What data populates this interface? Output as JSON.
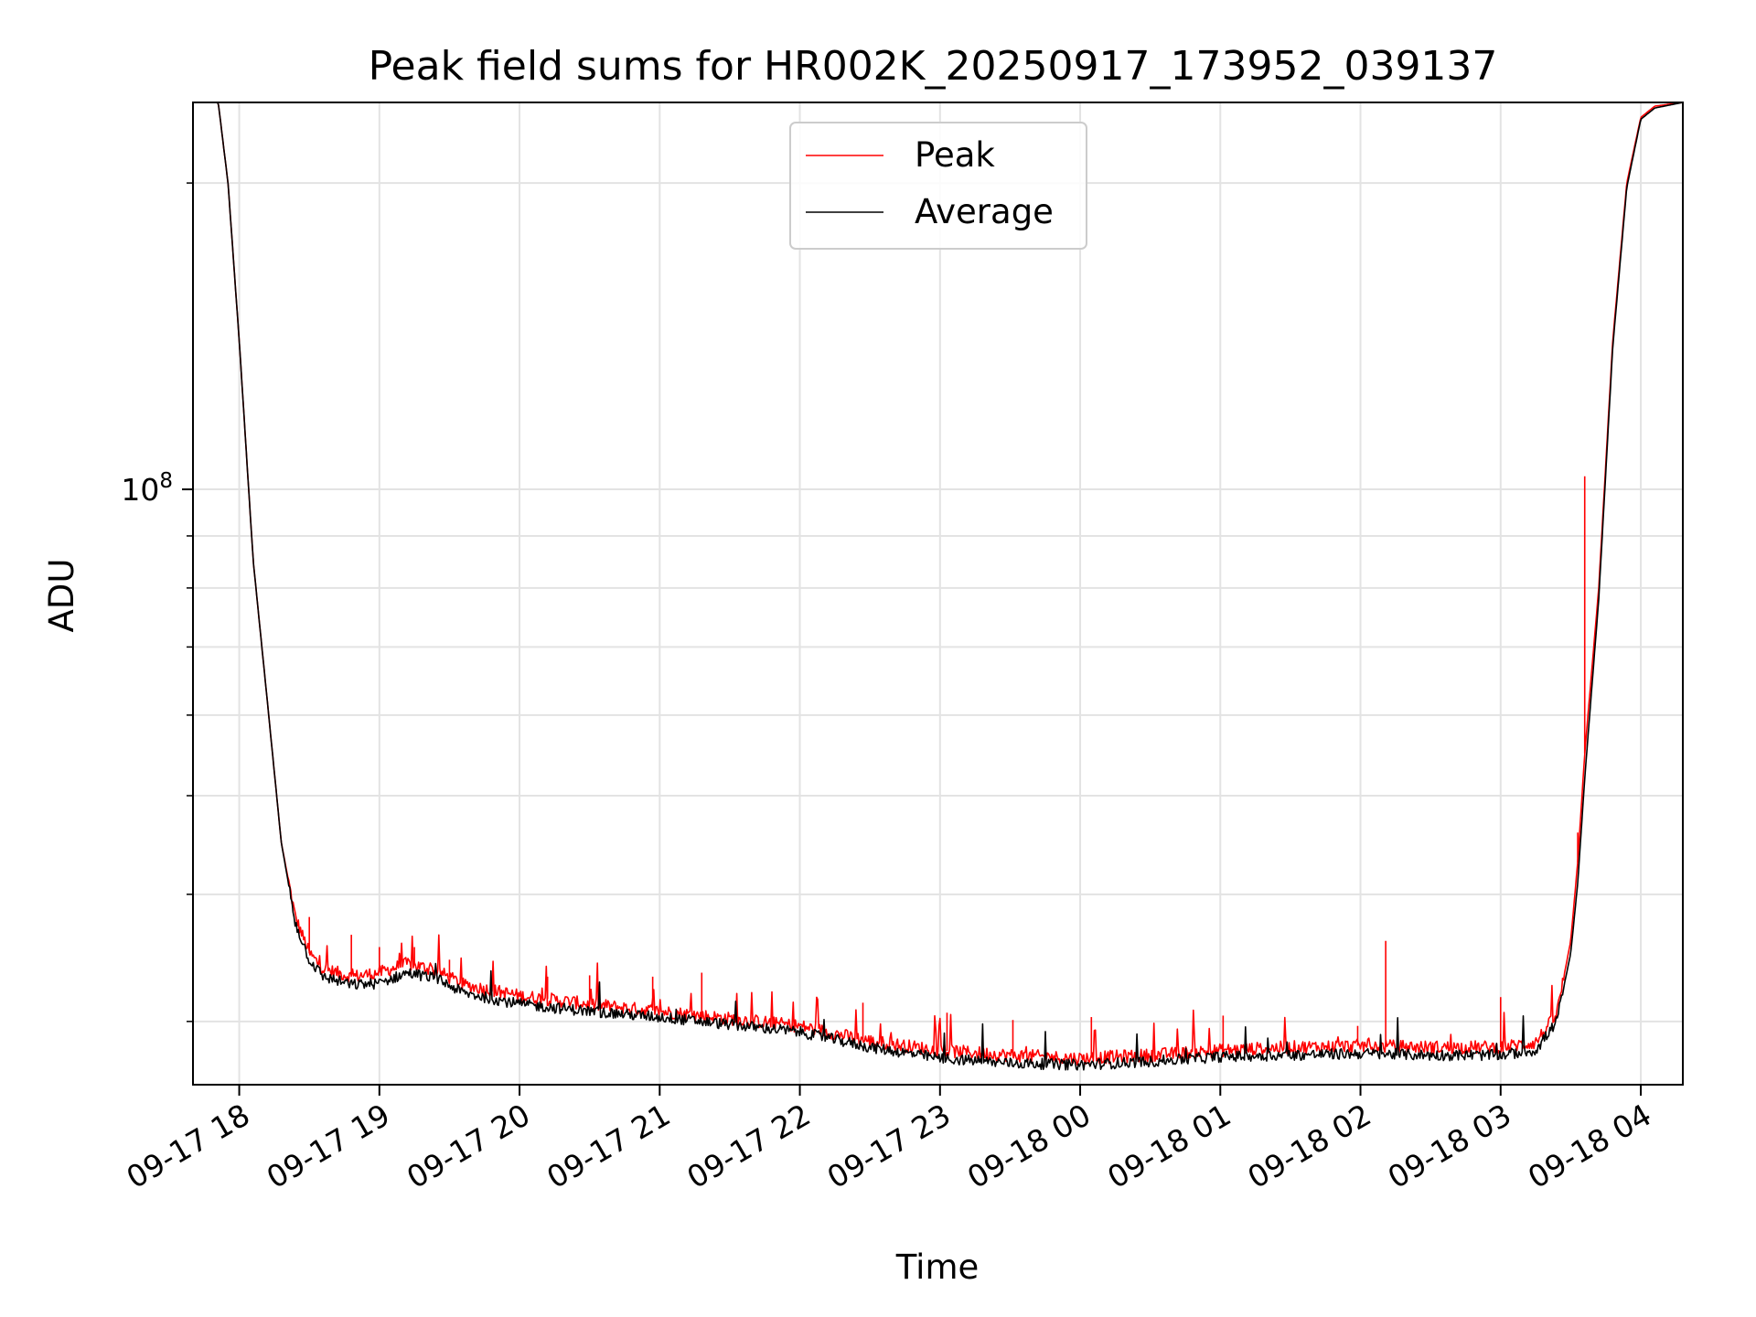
{
  "chart_data": {
    "type": "line",
    "title": "Peak field sums for HR002K_20250917_173952_039137",
    "xlabel": "Time",
    "ylabel": "ADU",
    "yscale": "log",
    "xlim_hours": [
      17.67,
      28.3
    ],
    "ylim": [
      26000000,
      240000000
    ],
    "grid": true,
    "legend_position": "upper-center",
    "x_ticks": [
      {
        "hour": 18,
        "label": "09-17 18"
      },
      {
        "hour": 19,
        "label": "09-17 19"
      },
      {
        "hour": 20,
        "label": "09-17 20"
      },
      {
        "hour": 21,
        "label": "09-17 21"
      },
      {
        "hour": 22,
        "label": "09-17 22"
      },
      {
        "hour": 23,
        "label": "09-17 23"
      },
      {
        "hour": 24,
        "label": "09-18 00"
      },
      {
        "hour": 25,
        "label": "09-18 01"
      },
      {
        "hour": 26,
        "label": "09-18 02"
      },
      {
        "hour": 27,
        "label": "09-18 03"
      },
      {
        "hour": 28,
        "label": "09-18 04"
      }
    ],
    "y_major_ticks": [
      {
        "value": 100000000,
        "base": "10",
        "exp": "8"
      }
    ],
    "y_minor_ticks": [
      30000000,
      40000000,
      50000000,
      60000000,
      70000000,
      80000000,
      90000000,
      200000000
    ],
    "series": [
      {
        "name": "Peak",
        "color": "#ff0000",
        "points": [
          [
            17.67,
            240000000
          ],
          [
            17.85,
            240000000
          ],
          [
            17.92,
            200000000
          ],
          [
            18.0,
            140000000
          ],
          [
            18.1,
            85000000
          ],
          [
            18.2,
            62000000
          ],
          [
            18.3,
            45000000
          ],
          [
            18.4,
            38000000
          ],
          [
            18.5,
            35000000
          ],
          [
            18.6,
            33800000
          ],
          [
            18.8,
            33200000
          ],
          [
            19.0,
            33500000
          ],
          [
            19.2,
            34200000
          ],
          [
            19.4,
            33700000
          ],
          [
            19.6,
            32600000
          ],
          [
            20.0,
            31800000
          ],
          [
            20.5,
            31200000
          ],
          [
            21.0,
            30700000
          ],
          [
            21.5,
            30200000
          ],
          [
            22.0,
            29700000
          ],
          [
            22.5,
            28700000
          ],
          [
            23.0,
            28100000
          ],
          [
            23.5,
            27800000
          ],
          [
            24.0,
            27600000
          ],
          [
            24.5,
            27800000
          ],
          [
            25.0,
            28100000
          ],
          [
            25.5,
            28300000
          ],
          [
            26.0,
            28400000
          ],
          [
            26.5,
            28300000
          ],
          [
            27.0,
            28300000
          ],
          [
            27.25,
            28600000
          ],
          [
            27.4,
            30500000
          ],
          [
            27.5,
            36000000
          ],
          [
            27.55,
            43000000
          ],
          [
            27.6,
            55000000
          ],
          [
            27.7,
            80000000
          ],
          [
            27.8,
            140000000
          ],
          [
            27.9,
            200000000
          ],
          [
            28.0,
            232000000
          ],
          [
            28.1,
            238000000
          ],
          [
            28.3,
            240000000
          ]
        ],
        "spikes": [
          [
            18.5,
            38000000
          ],
          [
            18.8,
            36500000
          ],
          [
            19.0,
            35500000
          ],
          [
            19.25,
            35500000
          ],
          [
            19.5,
            34500000
          ],
          [
            20.2,
            33200000
          ],
          [
            20.5,
            33300000
          ],
          [
            20.95,
            33200000
          ],
          [
            21.3,
            33500000
          ],
          [
            22.45,
            31300000
          ],
          [
            23.05,
            30600000
          ],
          [
            23.52,
            30100000
          ],
          [
            24.08,
            30300000
          ],
          [
            25.02,
            30400000
          ],
          [
            25.98,
            29700000
          ],
          [
            26.18,
            36000000
          ],
          [
            27.0,
            31700000
          ],
          [
            27.55,
            46000000
          ],
          [
            27.6,
            103000000
          ]
        ]
      },
      {
        "name": "Average",
        "color": "#000000",
        "points": [
          [
            17.67,
            240000000
          ],
          [
            17.85,
            240000000
          ],
          [
            17.92,
            200000000
          ],
          [
            18.0,
            140000000
          ],
          [
            18.1,
            85000000
          ],
          [
            18.2,
            62000000
          ],
          [
            18.3,
            45000000
          ],
          [
            18.4,
            37500000
          ],
          [
            18.5,
            34500000
          ],
          [
            18.6,
            33200000
          ],
          [
            18.8,
            32600000
          ],
          [
            19.0,
            32700000
          ],
          [
            19.2,
            33500000
          ],
          [
            19.4,
            33100000
          ],
          [
            19.6,
            32000000
          ],
          [
            20.0,
            31200000
          ],
          [
            20.5,
            30700000
          ],
          [
            21.0,
            30300000
          ],
          [
            21.5,
            29800000
          ],
          [
            22.0,
            29300000
          ],
          [
            22.5,
            28300000
          ],
          [
            23.0,
            27600000
          ],
          [
            23.5,
            27300000
          ],
          [
            24.0,
            27200000
          ],
          [
            24.5,
            27400000
          ],
          [
            25.0,
            27700000
          ],
          [
            25.5,
            27800000
          ],
          [
            26.0,
            27900000
          ],
          [
            26.5,
            27800000
          ],
          [
            27.0,
            27800000
          ],
          [
            27.25,
            28100000
          ],
          [
            27.4,
            30000000
          ],
          [
            27.5,
            35000000
          ],
          [
            27.55,
            41000000
          ],
          [
            27.6,
            52000000
          ],
          [
            27.7,
            78000000
          ],
          [
            27.8,
            138000000
          ],
          [
            27.9,
            198000000
          ],
          [
            28.0,
            231000000
          ],
          [
            28.1,
            237000000
          ],
          [
            28.3,
            240000000
          ]
        ]
      }
    ]
  }
}
